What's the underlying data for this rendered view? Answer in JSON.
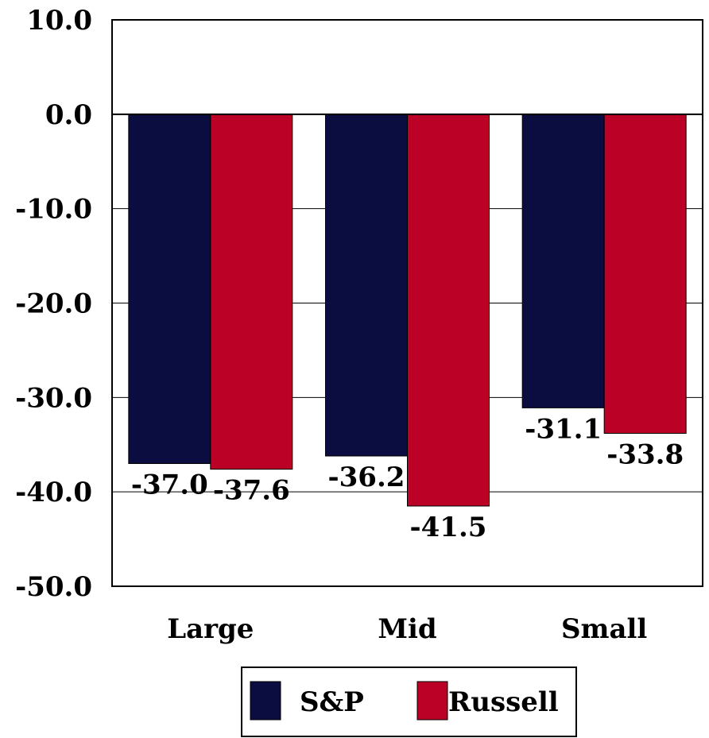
{
  "chart_data": {
    "type": "bar",
    "categories": [
      "Large",
      "Mid",
      "Small"
    ],
    "series": [
      {
        "name": "S&P",
        "values": [
          -37.0,
          -36.2,
          -31.1
        ],
        "color": "#0b0c40"
      },
      {
        "name": "Russell",
        "values": [
          -37.6,
          -41.5,
          -33.8
        ],
        "color": "#bb0125"
      }
    ],
    "data_labels": [
      [
        "-37.0",
        "-36.2",
        "-31.1"
      ],
      [
        "-37.6",
        "-41.5",
        "-33.8"
      ]
    ],
    "ylim": [
      -50,
      10
    ],
    "yticks": [
      10,
      0,
      -10,
      -20,
      -30,
      -40,
      -50
    ],
    "ytick_labels": [
      "10.0",
      "0.0",
      "-10.0",
      "-20.0",
      "-30.0",
      "-40.0",
      "-50.0"
    ],
    "title": "",
    "xlabel": "",
    "ylabel": "",
    "grid": true,
    "legend_position": "bottom"
  }
}
